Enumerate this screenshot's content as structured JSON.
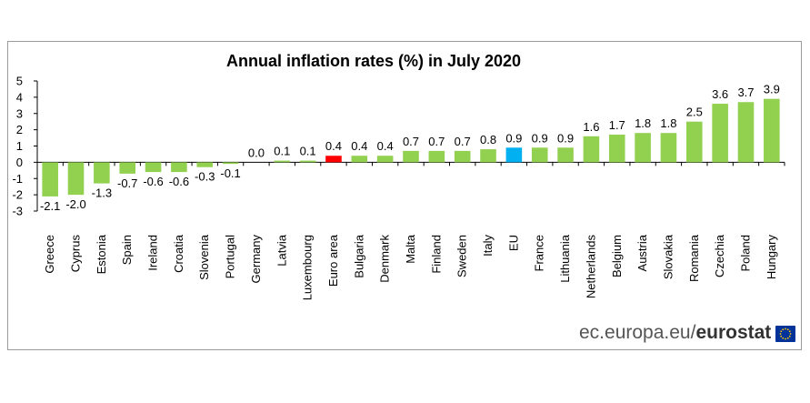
{
  "chart_data": {
    "type": "bar",
    "title": "Annual inflation rates (%) in July 2020",
    "xlabel": "",
    "ylabel": "",
    "ylim": [
      -3,
      5
    ],
    "yticks": [
      -3,
      -2,
      -1,
      0,
      1,
      2,
      3,
      4,
      5
    ],
    "ytick_labels": [
      "-3",
      "-2",
      "-1",
      "0",
      "1",
      "2",
      "3",
      "4",
      "5"
    ],
    "grid": false,
    "categories": [
      "Greece",
      "Cyprus",
      "Estonia",
      "Spain",
      "Ireland",
      "Croatia",
      "Slovenia",
      "Portugal",
      "Germany",
      "Latvia",
      "Luxembourg",
      "Euro area",
      "Bulgaria",
      "Denmark",
      "Malta",
      "Finland",
      "Sweden",
      "Italy",
      "EU",
      "France",
      "Lithuania",
      "Netherlands",
      "Belgium",
      "Austria",
      "Slovakia",
      "Romania",
      "Czechia",
      "Poland",
      "Hungary"
    ],
    "values": [
      -2.1,
      -2.0,
      -1.3,
      -0.7,
      -0.6,
      -0.6,
      -0.3,
      -0.1,
      0.0,
      0.1,
      0.1,
      0.4,
      0.4,
      0.4,
      0.7,
      0.7,
      0.7,
      0.8,
      0.9,
      0.9,
      0.9,
      1.6,
      1.7,
      1.8,
      1.8,
      2.5,
      3.6,
      3.7,
      3.9
    ],
    "value_labels": [
      "-2.1",
      "-2.0",
      "-1.3",
      "-0.7",
      "-0.6",
      "-0.6",
      "-0.3",
      "-0.1",
      "0.0",
      "0.1",
      "0.1",
      "0.4",
      "0.4",
      "0.4",
      "0.7",
      "0.7",
      "0.7",
      "0.8",
      "0.9",
      "0.9",
      "0.9",
      "1.6",
      "1.7",
      "1.8",
      "1.8",
      "2.5",
      "3.6",
      "3.7",
      "3.9"
    ],
    "colors": {
      "default": "#92d050",
      "Euro area": "#ff0000",
      "EU": "#00b0f0"
    }
  },
  "credit": {
    "site": "ec.europa.eu/",
    "brand": "eurostat"
  },
  "colors": {
    "axis": "#000000",
    "frame": "#9a9a9a",
    "flag": "#003399",
    "star": "#ffcc00"
  }
}
